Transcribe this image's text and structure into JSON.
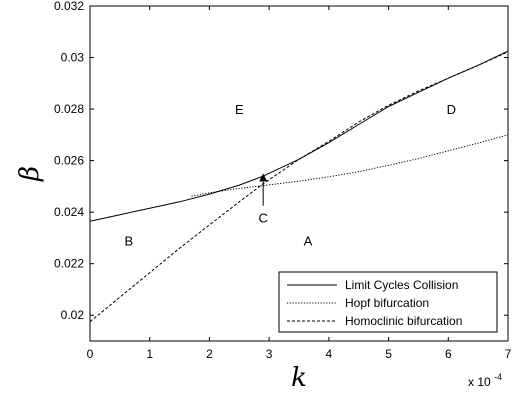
{
  "chart_data": {
    "type": "line",
    "title": "",
    "xlabel": "k",
    "ylabel": "β",
    "x_exponent_label": "x 10",
    "x_exponent_power": "-4",
    "xlim": [
      0,
      7
    ],
    "ylim": [
      0.019,
      0.032
    ],
    "x_ticks": [
      0,
      1,
      2,
      3,
      4,
      5,
      6,
      7
    ],
    "x_tick_labels": [
      "0",
      "1",
      "2",
      "3",
      "4",
      "5",
      "6",
      "7"
    ],
    "y_ticks": [
      0.02,
      0.022,
      0.024,
      0.026,
      0.028,
      0.03,
      0.032
    ],
    "y_tick_labels": [
      "0.02",
      "0.022",
      "0.024",
      "0.026",
      "0.028",
      "0.03",
      "0.032"
    ],
    "grid": false,
    "legend_position": "bottom-right",
    "series": [
      {
        "name": "Limit Cycles Collision",
        "style": "solid",
        "x": [
          0,
          0.5,
          1,
          1.5,
          2,
          2.5,
          2.9,
          3.5,
          4,
          4.5,
          5,
          5.5,
          6,
          6.5,
          7
        ],
        "y": [
          0.02365,
          0.0239,
          0.02415,
          0.0244,
          0.0247,
          0.02505,
          0.0254,
          0.02605,
          0.0267,
          0.0274,
          0.0281,
          0.02865,
          0.0292,
          0.0297,
          0.03025
        ]
      },
      {
        "name": "Hopf bifurcation",
        "style": "dotted",
        "x": [
          1.7,
          2,
          2.5,
          2.9,
          3,
          3.5,
          4,
          4.5,
          5,
          5.5,
          6,
          6.5,
          7
        ],
        "y": [
          0.02462,
          0.02475,
          0.02492,
          0.02503,
          0.02506,
          0.0252,
          0.02537,
          0.02557,
          0.02582,
          0.02608,
          0.02638,
          0.02668,
          0.027
        ]
      },
      {
        "name": "Homoclinic bifurcation",
        "style": "dashed",
        "x": [
          0,
          0.5,
          1,
          1.5,
          2,
          2.5,
          2.9,
          3.5,
          4,
          4.5,
          5,
          5.5,
          6,
          6.5,
          7
        ],
        "y": [
          0.01975,
          0.0207,
          0.02165,
          0.0226,
          0.0235,
          0.0244,
          0.0251,
          0.02605,
          0.02675,
          0.0275,
          0.02815,
          0.0287,
          0.0292,
          0.0297,
          0.03022
        ]
      }
    ],
    "annotations": [
      {
        "text": "E",
        "x": 2.5,
        "y": 0.028
      },
      {
        "text": "D",
        "x": 6.05,
        "y": 0.028
      },
      {
        "text": "B",
        "x": 0.65,
        "y": 0.0229
      },
      {
        "text": "A",
        "x": 3.65,
        "y": 0.0229
      },
      {
        "text": "C",
        "x": 2.9,
        "y": 0.0238
      }
    ],
    "arrow": {
      "from": [
        2.9,
        0.02425
      ],
      "to": [
        2.9,
        0.02535
      ]
    }
  }
}
